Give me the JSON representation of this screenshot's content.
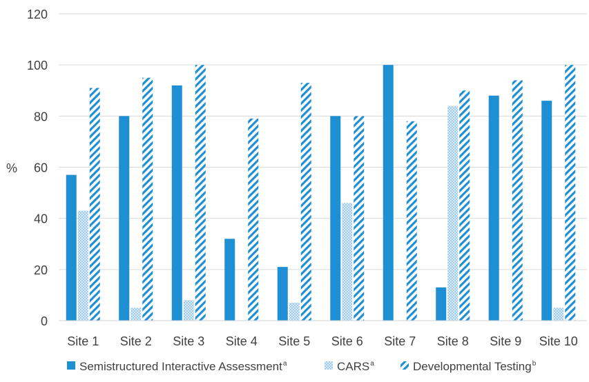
{
  "chart_data": {
    "type": "bar",
    "title": "",
    "xlabel": "",
    "ylabel": "%",
    "ylim": [
      0,
      120
    ],
    "yticks": [
      0,
      20,
      40,
      60,
      80,
      100,
      120
    ],
    "grid": true,
    "legend_position": "bottom",
    "categories": [
      "Site 1",
      "Site 2",
      "Site 3",
      "Site 4",
      "Site 5",
      "Site 6",
      "Site 7",
      "Site 8",
      "Site 9",
      "Site 10"
    ],
    "series": [
      {
        "name": "Semistructured Interactive Assessment",
        "superscript": "a",
        "pattern": "solid",
        "color": "#1f8fd3",
        "values": [
          57,
          80,
          92,
          32,
          21,
          80,
          100,
          13,
          88,
          86
        ]
      },
      {
        "name": "CARS",
        "superscript": "a",
        "pattern": "dots",
        "color": "#8fc3e6",
        "values": [
          43,
          5,
          8,
          0,
          7,
          46,
          0,
          84,
          0,
          5
        ]
      },
      {
        "name": "Developmental Testing",
        "superscript": "b",
        "pattern": "diagonal",
        "color": "#1f8fd3",
        "values": [
          91,
          95,
          100,
          79,
          93,
          80,
          78,
          90,
          94,
          100
        ]
      }
    ]
  }
}
